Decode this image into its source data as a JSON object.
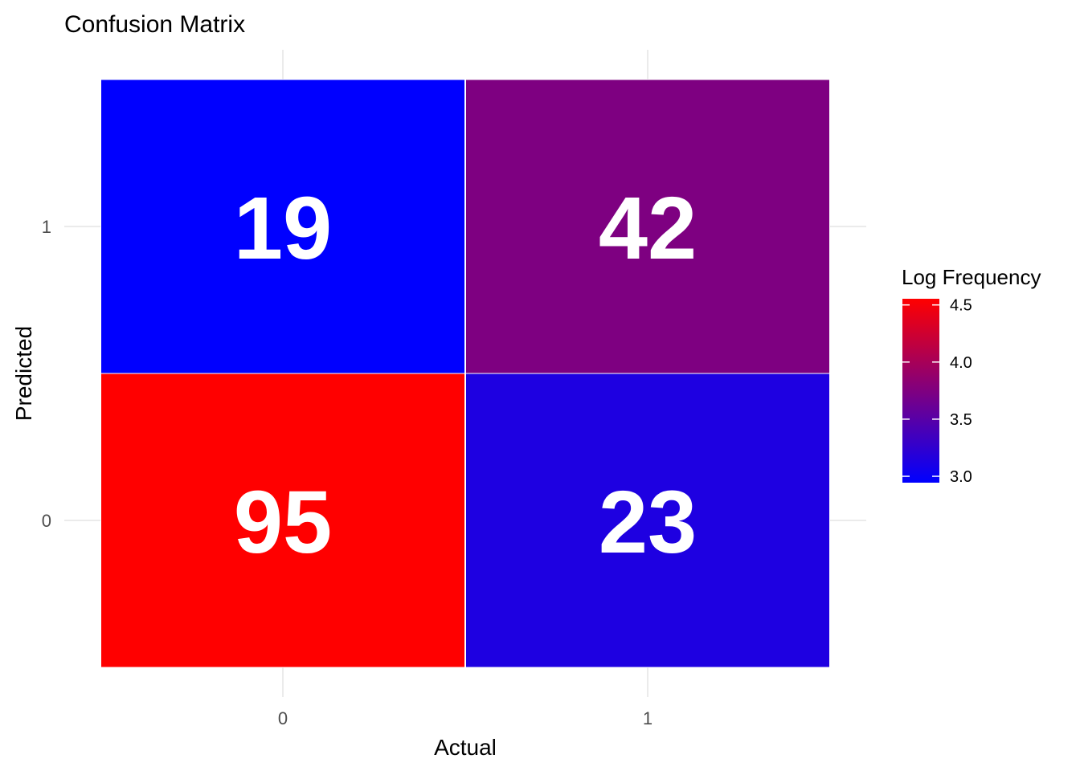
{
  "chart_data": {
    "type": "heatmap",
    "title": "Confusion Matrix",
    "xlabel": "Actual",
    "ylabel": "Predicted",
    "x_categories": [
      "0",
      "1"
    ],
    "y_categories": [
      "0",
      "1"
    ],
    "cells": [
      {
        "actual": "0",
        "predicted": "1",
        "count": 19,
        "log_frequency": 2.944
      },
      {
        "actual": "1",
        "predicted": "1",
        "count": 42,
        "log_frequency": 3.738
      },
      {
        "actual": "0",
        "predicted": "0",
        "count": 95,
        "log_frequency": 4.554
      },
      {
        "actual": "1",
        "predicted": "0",
        "count": 23,
        "log_frequency": 3.135
      }
    ],
    "legend": {
      "title": "Log Frequency",
      "ticks": [
        "3.0",
        "3.5",
        "4.0",
        "4.5"
      ],
      "tick_values": [
        3.0,
        3.5,
        4.0,
        4.5
      ],
      "range": [
        2.944,
        4.554
      ],
      "low_color": "#0000ff",
      "high_color": "#ff0000",
      "placement": "right"
    },
    "grid": true,
    "text_color": "#ffffff"
  }
}
